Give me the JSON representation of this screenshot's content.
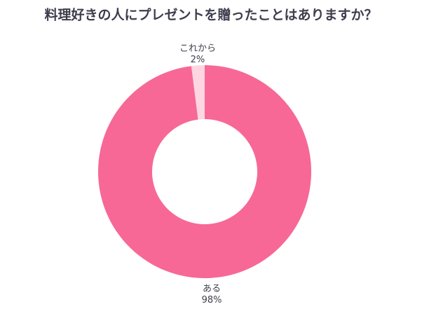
{
  "chart_data": {
    "type": "donut",
    "title": "料理好きの人にプレゼントを贈ったことはありますか？",
    "categories": [
      "ある",
      "これから"
    ],
    "values": [
      98,
      2
    ],
    "value_labels": [
      "98%",
      "2%"
    ],
    "colors": [
      "#f76896",
      "#fdd6e1"
    ]
  }
}
